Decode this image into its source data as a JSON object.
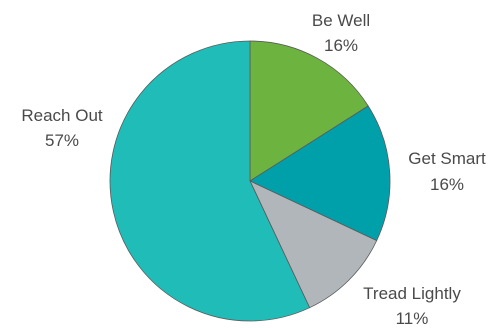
{
  "chart_data": {
    "type": "pie",
    "title": "",
    "slices": [
      {
        "label": "Be Well",
        "value": 16,
        "display": "16%",
        "color": "#6db33f"
      },
      {
        "label": "Get Smart",
        "value": 16,
        "display": "16%",
        "color": "#00a0aa"
      },
      {
        "label": "Tread Lightly",
        "value": 11,
        "display": "11%",
        "color": "#b1b6ba"
      },
      {
        "label": "Reach Out",
        "value": 57,
        "display": "57%",
        "color": "#20bdb8"
      }
    ],
    "start_angle_deg": 0,
    "direction": "clockwise",
    "legend": "none"
  }
}
